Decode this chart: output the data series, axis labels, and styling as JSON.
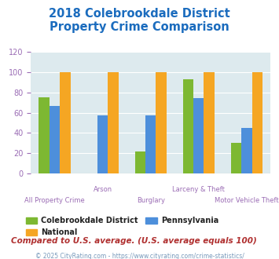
{
  "title": "2018 Colebrookdale District\nProperty Crime Comparison",
  "categories": [
    "All Property Crime",
    "Arson",
    "Burglary",
    "Larceny & Theft",
    "Motor Vehicle Theft"
  ],
  "series_order": [
    "Colebrookdale District",
    "Pennsylvania",
    "National"
  ],
  "series": {
    "Colebrookdale District": [
      75,
      0,
      22,
      93,
      30
    ],
    "National": [
      100,
      100,
      100,
      100,
      100
    ],
    "Pennsylvania": [
      67,
      57,
      57,
      74,
      45
    ]
  },
  "colors": {
    "Colebrookdale District": "#7db832",
    "National": "#f5a623",
    "Pennsylvania": "#4d8fdb"
  },
  "ylim": [
    0,
    120
  ],
  "yticks": [
    0,
    20,
    40,
    60,
    80,
    100,
    120
  ],
  "bar_width": 0.22,
  "title_color": "#1b6cbe",
  "title_fontsize": 10.5,
  "axis_bg_color": "#ddeaee",
  "xlabel_color": "#9b6db5",
  "legend_label_color": "#222222",
  "footnote1": "Compared to U.S. average. (U.S. average equals 100)",
  "footnote2": "© 2025 CityRating.com - https://www.cityrating.com/crime-statistics/",
  "footnote1_color": "#b03030",
  "footnote2_color": "#7799bb",
  "label_rows": [
    1,
    0,
    1,
    0,
    1
  ],
  "ytick_color": "#9b6db5"
}
